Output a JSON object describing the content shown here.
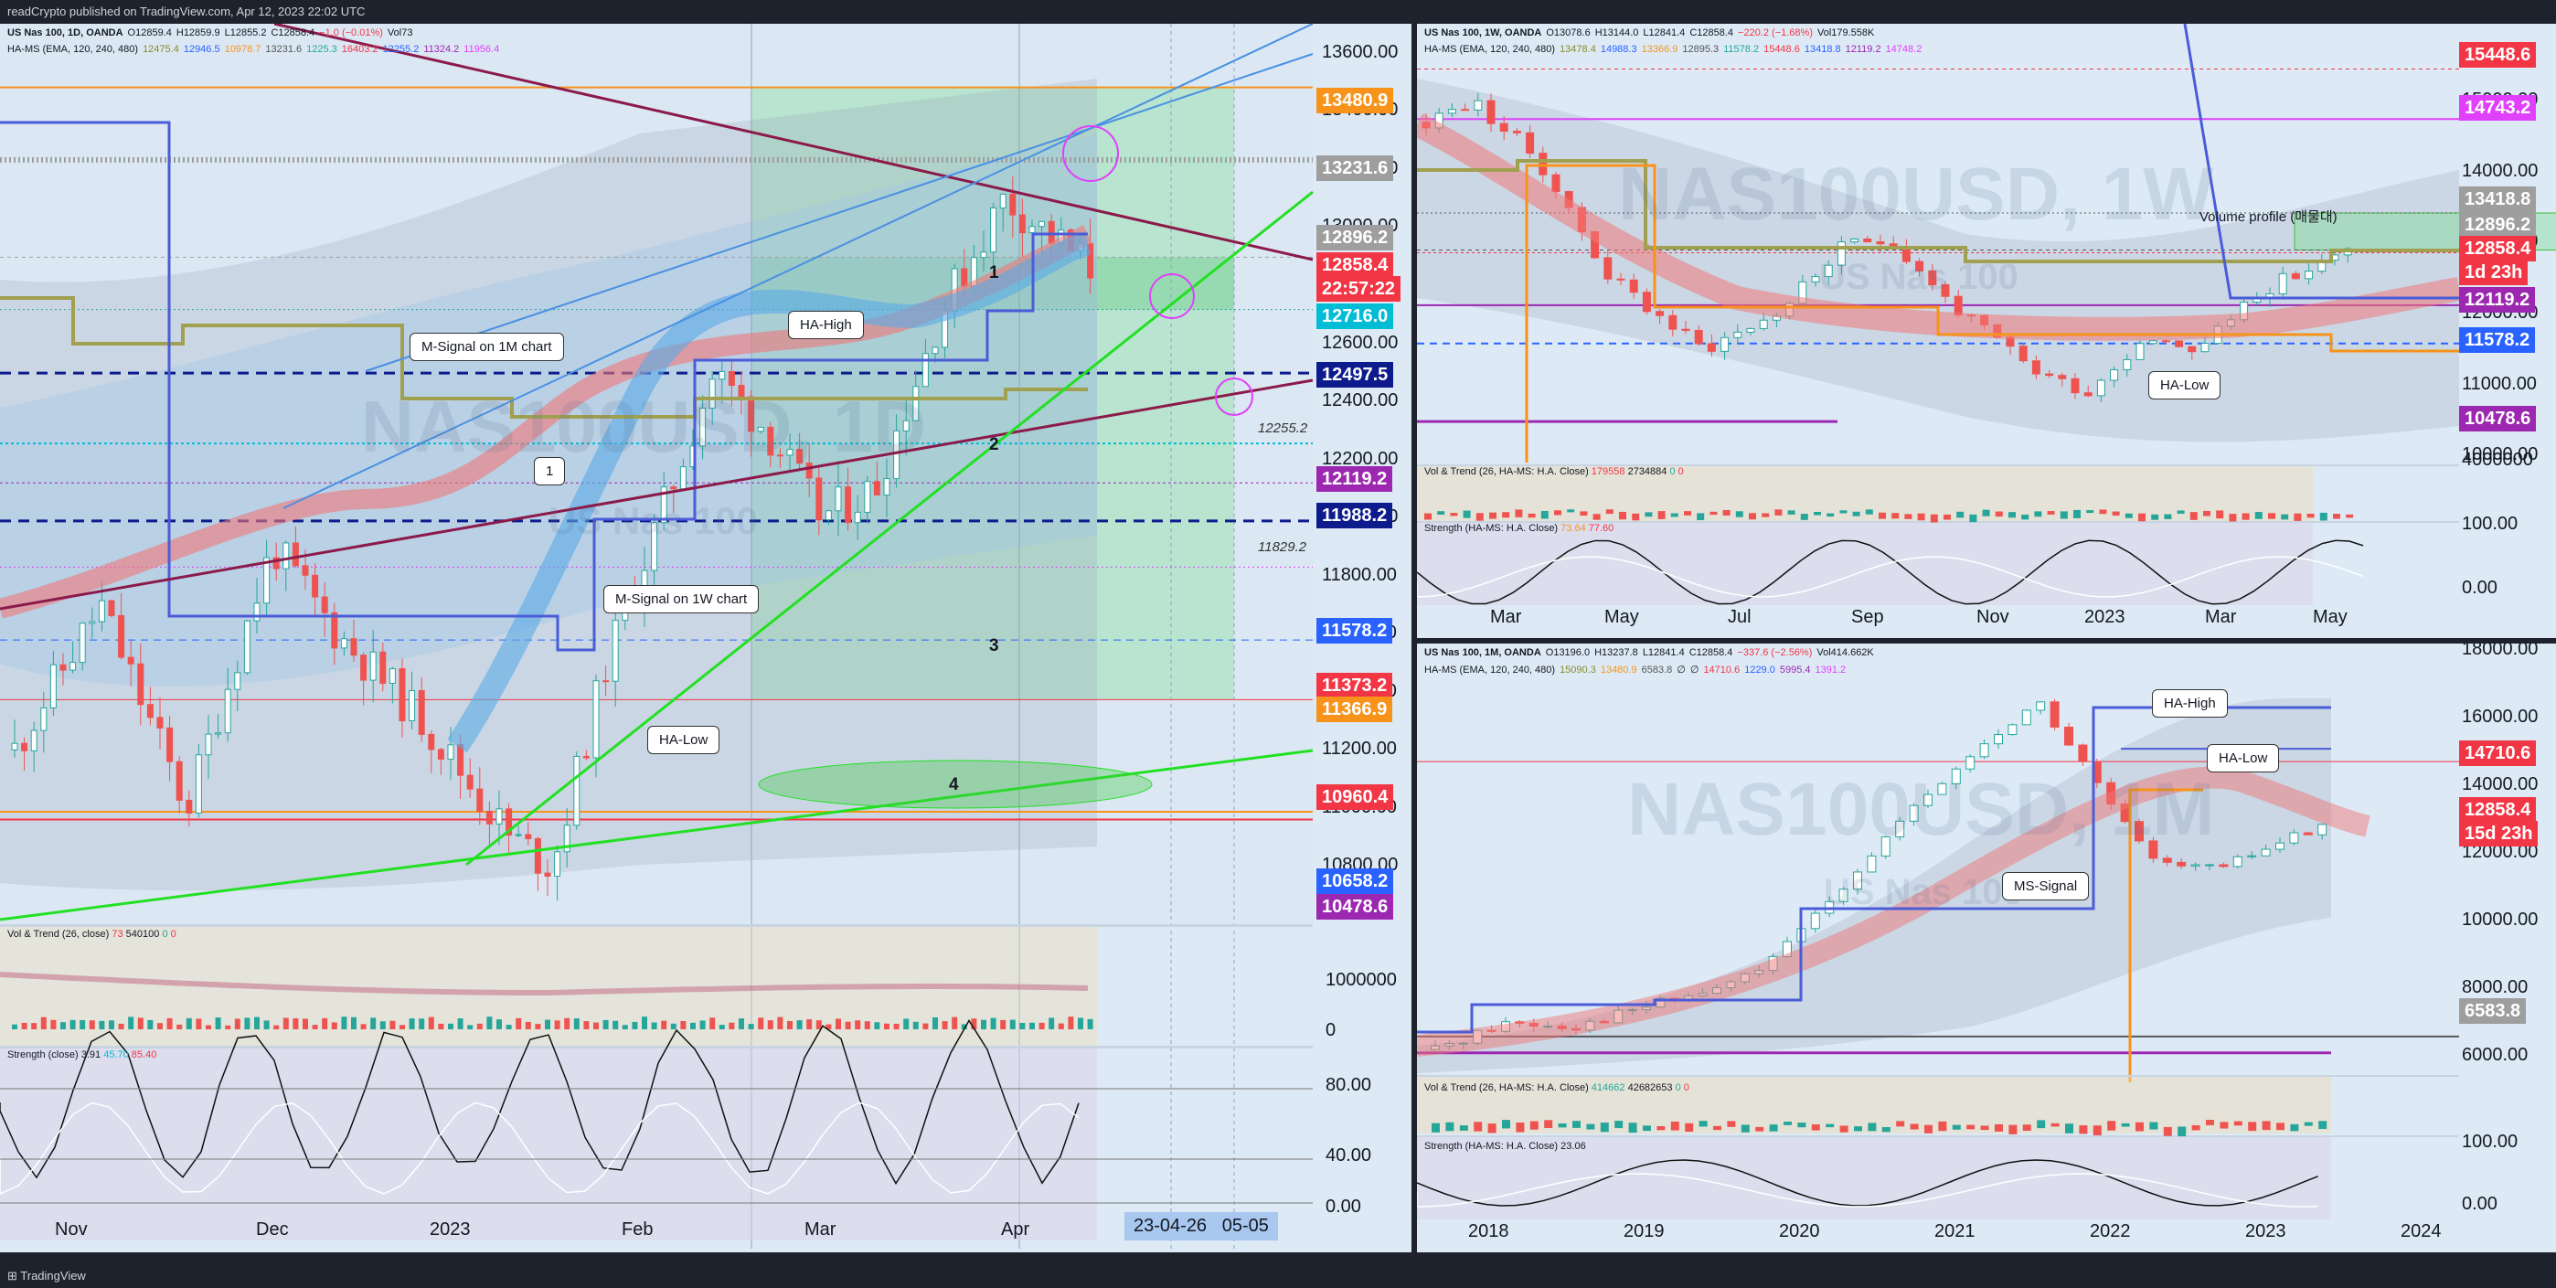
{
  "header_bar": "readCrypto published on TradingView.com, Apr 12, 2023 22:02 UTC",
  "footer_bar": "TradingView",
  "daily": {
    "title": "US Nas 100, 1D, OANDA",
    "ohlc": [
      "O12859.4",
      "H12859.9",
      "L12855.2",
      "C12858.4",
      "−1.0 (−0.01%)",
      "Vol73"
    ],
    "hams_label": "HA-MS (EMA, 120, 240, 480)",
    "hams_values": [
      "12475.4",
      "12946.5",
      "10978.7",
      "13231.6",
      "1225.3",
      "16403.2",
      "12255.2",
      "11324.2",
      "11956.4"
    ],
    "watermark": "NAS100USD, 1D",
    "watermark_sub": "US Nas 100",
    "y_ticks": [
      "13600.00",
      "13400.00",
      "13200.00",
      "13000.00",
      "12800.00",
      "12600.00",
      "12400.00",
      "12200.00",
      "12000.00",
      "11800.00",
      "11600.00",
      "11400.00",
      "11200.00",
      "11000.00",
      "10800.00"
    ],
    "x_ticks": [
      "Nov",
      "Dec",
      "2023",
      "Feb",
      "Mar",
      "Apr"
    ],
    "date_box": [
      "23-04-26",
      "05-05"
    ],
    "price_tags": [
      {
        "text": "13480.9",
        "color": "#f7931a"
      },
      {
        "text": "13231.6",
        "color": "#9e9e9e"
      },
      {
        "text": "12896.2",
        "color": "#9e9e9e"
      },
      {
        "text": "12858.4",
        "color": "#f23645"
      },
      {
        "text": "22:57:22",
        "color": "#f23645"
      },
      {
        "text": "12716.0",
        "color": "#00bcd4"
      },
      {
        "text": "12497.5",
        "color": "#0d1b8c"
      },
      {
        "text": "12119.2",
        "color": "#9c27b0"
      },
      {
        "text": "11988.2",
        "color": "#0d1b8c"
      },
      {
        "text": "11578.2",
        "color": "#2962ff"
      },
      {
        "text": "11373.2",
        "color": "#f23645"
      },
      {
        "text": "11366.9",
        "color": "#f7931a"
      },
      {
        "text": "10960.4",
        "color": "#f23645"
      },
      {
        "text": "10658.2",
        "color": "#2962ff"
      },
      {
        "text": "10478.6",
        "color": "#9c27b0"
      }
    ],
    "gray_labels": [
      "12255.2",
      "11829.2"
    ],
    "callouts": [
      "M-Signal on 1M chart",
      "HA-High",
      "1",
      "M-Signal on 1W chart",
      "HA-Low"
    ],
    "numbers": [
      "1",
      "2",
      "3",
      "4"
    ],
    "vol_hdr": [
      "Vol & Trend (26, close)",
      "73",
      "540100",
      "0",
      "0"
    ],
    "vol_ticks": [
      "1000000",
      "0"
    ],
    "str_hdr": [
      "Strength (close)",
      "3.91",
      "45.70",
      "85.40"
    ],
    "str_ticks": [
      "80.00",
      "40.00",
      "0.00"
    ]
  },
  "weekly": {
    "title": "US Nas 100, 1W, OANDA",
    "ohlc": [
      "O13078.6",
      "H13144.0",
      "L12841.4",
      "C12858.4",
      "−220.2 (−1.68%)",
      "Vol179.558K"
    ],
    "hams_label": "HA-MS (EMA, 120, 240, 480)",
    "hams_values": [
      "13478.4",
      "14988.3",
      "13366.9",
      "12895.3",
      "11578.2",
      "15448.6",
      "13418.8",
      "12119.2",
      "14748.2"
    ],
    "watermark": "NAS100USD, 1W",
    "watermark_sub": "US Nas 100",
    "y_ticks": [
      "15000.00",
      "14000.00",
      "13000.00",
      "12000.00",
      "11000.00",
      "10000.00"
    ],
    "x_ticks": [
      "Mar",
      "May",
      "Jul",
      "Sep",
      "Nov",
      "2023",
      "Mar",
      "May"
    ],
    "price_tags": [
      {
        "text": "15448.6",
        "color": "#f23645"
      },
      {
        "text": "14743.2",
        "color": "#e040fb"
      },
      {
        "text": "13418.8",
        "color": "#9e9e9e"
      },
      {
        "text": "12896.2",
        "color": "#9e9e9e"
      },
      {
        "text": "12858.4",
        "color": "#f23645"
      },
      {
        "text": "1d 23h",
        "color": "#f23645"
      },
      {
        "text": "12119.2",
        "color": "#9c27b0"
      },
      {
        "text": "11578.2",
        "color": "#2962ff"
      },
      {
        "text": "10478.6",
        "color": "#9c27b0"
      }
    ],
    "callouts": [
      "Volume profile (매물대)",
      "HA-Low"
    ],
    "vol_hdr": [
      "Vol & Trend (26, HA-MS: H.A. Close)",
      "179558",
      "2734884",
      "0",
      "0"
    ],
    "vol_ticks": [
      "4000000"
    ],
    "str_hdr": [
      "Strength (HA-MS: H.A. Close)",
      "73.64",
      "77.60"
    ],
    "str_ticks": [
      "100.00",
      "0.00"
    ]
  },
  "monthly": {
    "title": "US Nas 100, 1M, OANDA",
    "ohlc": [
      "O13196.0",
      "H13237.8",
      "L12841.4",
      "C12858.4",
      "−337.6 (−2.56%)",
      "Vol414.662K"
    ],
    "hams_label": "HA-MS (EMA, 120, 240, 480)",
    "hams_values": [
      "15090.3",
      "13480.9",
      "6583.8",
      "∅",
      "∅",
      "14710.6",
      "1229.0",
      "5995.4",
      "1391.2"
    ],
    "watermark": "NAS100USD, 1M",
    "watermark_sub": "US Nas 100",
    "y_ticks": [
      "18000.00",
      "16000.00",
      "14000.00",
      "12000.00",
      "10000.00",
      "8000.00",
      "6000.00"
    ],
    "x_ticks": [
      "2018",
      "2019",
      "2020",
      "2021",
      "2022",
      "2023",
      "2024"
    ],
    "price_tags": [
      {
        "text": "14710.6",
        "color": "#f23645"
      },
      {
        "text": "12858.4",
        "color": "#f23645"
      },
      {
        "text": "15d 23h",
        "color": "#f23645"
      },
      {
        "text": "6583.8",
        "color": "#9e9e9e"
      }
    ],
    "callouts": [
      "HA-High",
      "HA-Low",
      "MS-Signal"
    ],
    "vol_hdr": [
      "Vol & Trend (26, HA-MS: H.A. Close)",
      "414662",
      "42682653",
      "0",
      "0"
    ],
    "str_hdr": [
      "Strength (HA-MS: H.A. Close)",
      "23.06"
    ],
    "str_ticks": [
      "100.00",
      "0.00"
    ]
  },
  "chart_data": [
    {
      "type": "candlestick",
      "title": "US Nas 100, 1D, OANDA",
      "x_ticks": [
        "Nov",
        "Dec",
        "2023",
        "Feb",
        "Mar",
        "Apr"
      ],
      "ylim": [
        10600,
        13700
      ],
      "last_close": 12858.4,
      "horizontal_levels": [
        13480.9,
        13231.6,
        12896.2,
        12716.0,
        12497.5,
        12255.2,
        12119.2,
        11988.2,
        11829.2,
        11578.2,
        11373.2,
        11366.9,
        10960.4,
        10658.2,
        10478.6
      ]
    },
    {
      "type": "candlestick",
      "title": "US Nas 100, 1W, OANDA",
      "x_ticks": [
        "Mar",
        "May",
        "Jul",
        "Sep",
        "Nov",
        "2023",
        "Mar",
        "May"
      ],
      "ylim": [
        9900,
        15700
      ],
      "last_close": 12858.4,
      "horizontal_levels": [
        15448.6,
        14743.2,
        13418.8,
        12896.2,
        12119.2,
        11578.2,
        10478.6
      ]
    },
    {
      "type": "candlestick",
      "title": "US Nas 100, 1M, OANDA",
      "x_ticks": [
        "2018",
        "2019",
        "2020",
        "2021",
        "2022",
        "2023",
        "2024"
      ],
      "ylim": [
        5500,
        18200
      ],
      "last_close": 12858.4,
      "horizontal_levels": [
        14710.6,
        6583.8
      ]
    }
  ]
}
